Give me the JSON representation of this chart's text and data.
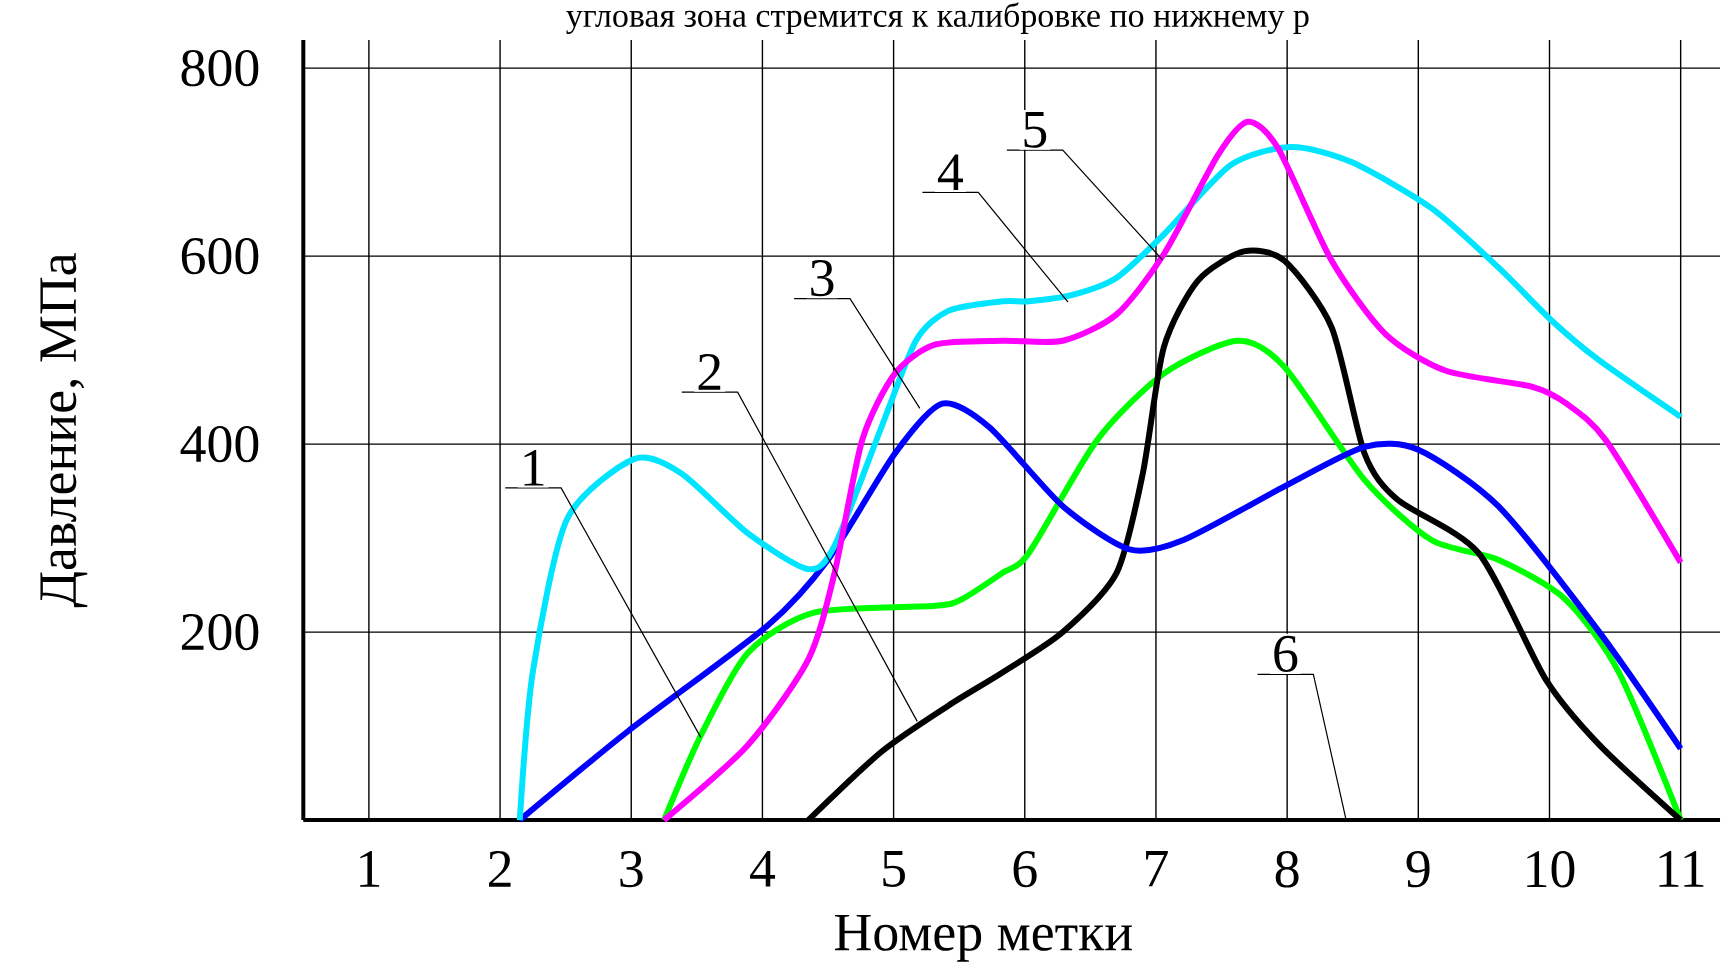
{
  "chart_data": {
    "type": "line",
    "xlabel": "Номер метки",
    "ylabel": "Давление, МПа",
    "xlim": [
      0.5,
      11.3
    ],
    "ylim": [
      0,
      830
    ],
    "xticks": [
      1,
      2,
      3,
      4,
      5,
      6,
      7,
      8,
      9,
      10,
      11
    ],
    "yticks": [
      {
        "value": 0,
        "label": null
      },
      200,
      400,
      600,
      800
    ],
    "grid": true,
    "line_style": "solid",
    "marker": "none",
    "series": [
      {
        "color": "#00ff00",
        "x": [
          3.25,
          3.53,
          3.89,
          4.4,
          5.32,
          5.52,
          5.83,
          6.03,
          6.55,
          7.06,
          7.62,
          7.98,
          8.59,
          9.1,
          9.61,
          10.12,
          10.53,
          11.0
        ],
        "values": [
          0,
          90,
          178,
          221,
          228,
          235,
          263,
          284,
          404,
          475,
          510,
          482,
          362,
          298,
          277,
          235,
          157,
          0
        ]
      },
      {
        "color": "#000000",
        "x": [
          4.35,
          4.91,
          5.42,
          5.83,
          6.29,
          6.7,
          6.9,
          7.06,
          7.32,
          7.67,
          7.98,
          8.34,
          8.59,
          8.84,
          9.46,
          9.97,
          10.38,
          11.0
        ],
        "values": [
          0,
          73,
          122,
          157,
          200,
          263,
          369,
          503,
          574,
          605,
          595,
          524,
          390,
          341,
          284,
          150,
          80,
          0
        ]
      },
      {
        "color": "#0000ff",
        "x": [
          2.15,
          2.97,
          4.04,
          4.5,
          5.01,
          5.37,
          5.73,
          6.29,
          6.8,
          7.21,
          7.98,
          8.59,
          9.0,
          9.61,
          10.38,
          11.0
        ],
        "values": [
          0,
          94,
          207,
          277,
          390,
          443,
          418,
          334,
          288,
          298,
          355,
          397,
          394,
          334,
          200,
          76
        ]
      },
      {
        "color": "#00e5ff",
        "x": [
          2.15,
          2.25,
          2.51,
          3.02,
          3.38,
          3.89,
          4.35,
          4.55,
          4.91,
          5.17,
          5.42,
          5.83,
          6.03,
          6.37,
          6.7,
          7.06,
          7.57,
          8.03,
          8.49,
          9.1,
          9.61,
          10.02,
          10.38,
          11.0
        ],
        "values": [
          0,
          158,
          320,
          384,
          369,
          305,
          267,
          292,
          419,
          510,
          542,
          552,
          552,
          559,
          577,
          623,
          697,
          716,
          700,
          651,
          588,
          531,
          489,
          429
        ]
      },
      {
        "color": "#ff00ff",
        "x": [
          3.25,
          3.89,
          4.35,
          4.55,
          4.76,
          5.01,
          5.32,
          5.83,
          6.29,
          6.7,
          7.06,
          7.47,
          7.7,
          7.93,
          8.34,
          8.75,
          9.21,
          9.87,
          10.13,
          10.43,
          11.0
        ],
        "values": [
          0,
          80,
          171,
          263,
          404,
          475,
          506,
          510,
          510,
          538,
          602,
          707,
          743,
          715,
          595,
          517,
          478,
          461,
          443,
          404,
          274
        ]
      }
    ],
    "annotations": [
      "угловая зона стремится к калибровке по нижнему р",
      {
        "text": "1",
        "x": 3.53,
        "y": 88
      },
      {
        "text": "2",
        "x": 5.18,
        "y": 105
      },
      {
        "text": "3",
        "x": 5.2,
        "y": 438
      },
      {
        "text": "4",
        "x": 6.33,
        "y": 551
      },
      {
        "text": "5",
        "x": 7.05,
        "y": 596
      },
      "6"
    ]
  }
}
